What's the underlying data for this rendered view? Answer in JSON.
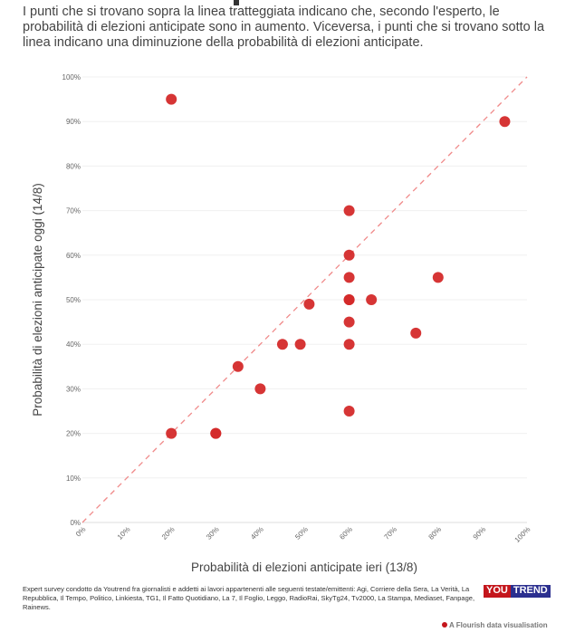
{
  "subtitle": "I punti che si trovano sopra la linea tratteggiata indicano che, secondo l'esperto, le probabilità di elezioni anticipate sono in aumento. Viceversa, i punti che si trovano sotto la linea indicano una diminuzione della probabilità di elezioni anticipate.",
  "chart_data": {
    "type": "scatter",
    "xlabel": "Probabilità di elezioni anticipate ieri (13/8)",
    "ylabel": "Probabilità di elezioni anticipate oggi (14/8)",
    "xlim": [
      0,
      100
    ],
    "ylim": [
      0,
      100
    ],
    "x_ticks": [
      "0%",
      "10%",
      "20%",
      "30%",
      "40%",
      "50%",
      "60%",
      "70%",
      "80%",
      "90%",
      "100%"
    ],
    "y_ticks": [
      "0%",
      "10%",
      "20%",
      "30%",
      "40%",
      "50%",
      "60%",
      "70%",
      "80%",
      "90%",
      "100%"
    ],
    "grid": true,
    "reference_line": "y = x (dashed)",
    "point_color": "#d42a2a",
    "line_color": "#f08a8a",
    "points": [
      {
        "x": 20,
        "y": 95
      },
      {
        "x": 95,
        "y": 90
      },
      {
        "x": 60,
        "y": 70
      },
      {
        "x": 60,
        "y": 60
      },
      {
        "x": 60,
        "y": 55
      },
      {
        "x": 80,
        "y": 55
      },
      {
        "x": 60,
        "y": 50
      },
      {
        "x": 60,
        "y": 50
      },
      {
        "x": 65,
        "y": 50
      },
      {
        "x": 51,
        "y": 49
      },
      {
        "x": 60,
        "y": 45
      },
      {
        "x": 75,
        "y": 42.5
      },
      {
        "x": 45,
        "y": 40
      },
      {
        "x": 49,
        "y": 40
      },
      {
        "x": 60,
        "y": 40
      },
      {
        "x": 35,
        "y": 35
      },
      {
        "x": 40,
        "y": 30
      },
      {
        "x": 60,
        "y": 25
      },
      {
        "x": 20,
        "y": 20
      },
      {
        "x": 30,
        "y": 20
      },
      {
        "x": 30,
        "y": 20
      }
    ]
  },
  "footer": {
    "note": "Expert survey condotto da Youtrend fra giornalisti e addetti ai lavori appartenenti alle seguenti testate/emittenti: Agi, Corriere della Sera, La Verità, La Repubblica, Il Tempo, Politico, Linkiesta, TG1, Il Fatto Quotidiano, La 7, Il Foglio, Leggo, RadioRai, SkyTg24, Tv2000, La Stampa, Mediaset, Fanpage, Rainews.",
    "logo_you": "YOU",
    "logo_trend": "TREND",
    "credit": "A Flourish data visualisation"
  }
}
